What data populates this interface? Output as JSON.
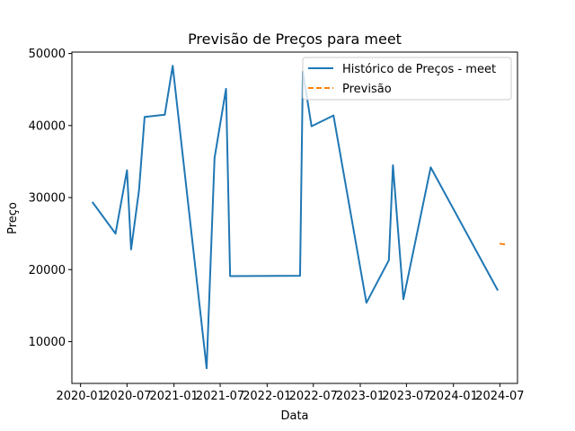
{
  "chart_data": {
    "type": "line",
    "title": "Previsão de Preços para meet",
    "xlabel": "Data",
    "ylabel": "Preço",
    "xlim": [
      "2019-11-28",
      "2024-09-08"
    ],
    "ylim": [
      4200,
      50200
    ],
    "y_ticks": [
      10000,
      20000,
      30000,
      40000,
      50000
    ],
    "x_ticks": [
      {
        "date": "2020-01-01",
        "label": "2020-01"
      },
      {
        "date": "2020-07-01",
        "label": "2020-07"
      },
      {
        "date": "2021-01-01",
        "label": "2021-01"
      },
      {
        "date": "2021-07-01",
        "label": "2021-07"
      },
      {
        "date": "2022-01-01",
        "label": "2022-01"
      },
      {
        "date": "2022-07-01",
        "label": "2022-07"
      },
      {
        "date": "2023-01-01",
        "label": "2023-01"
      },
      {
        "date": "2023-07-01",
        "label": "2023-07"
      },
      {
        "date": "2024-01-01",
        "label": "2024-01"
      },
      {
        "date": "2024-07-01",
        "label": "2024-07"
      }
    ],
    "grid": false,
    "legend_position": "top-right",
    "series": [
      {
        "name": "Histórico de Preços - meet",
        "color": "#1f77b4",
        "style": "solid",
        "points": [
          {
            "x": "2020-02-16",
            "y": 29400
          },
          {
            "x": "2020-05-17",
            "y": 25000
          },
          {
            "x": "2020-07-01",
            "y": 33800
          },
          {
            "x": "2020-07-17",
            "y": 22800
          },
          {
            "x": "2020-08-17",
            "y": 31000
          },
          {
            "x": "2020-09-08",
            "y": 41200
          },
          {
            "x": "2020-11-26",
            "y": 41500
          },
          {
            "x": "2020-12-27",
            "y": 48300
          },
          {
            "x": "2021-05-09",
            "y": 6300
          },
          {
            "x": "2021-06-09",
            "y": 35500
          },
          {
            "x": "2021-07-24",
            "y": 45100
          },
          {
            "x": "2021-08-09",
            "y": 19100
          },
          {
            "x": "2022-05-10",
            "y": 19150
          },
          {
            "x": "2022-05-21",
            "y": 47500
          },
          {
            "x": "2022-06-24",
            "y": 39900
          },
          {
            "x": "2022-09-18",
            "y": 41400
          },
          {
            "x": "2023-01-25",
            "y": 15400
          },
          {
            "x": "2023-04-23",
            "y": 21300
          },
          {
            "x": "2023-05-09",
            "y": 34500
          },
          {
            "x": "2023-06-19",
            "y": 15900
          },
          {
            "x": "2023-10-04",
            "y": 34200
          },
          {
            "x": "2024-06-23",
            "y": 17100
          }
        ]
      },
      {
        "name": "Previsão",
        "color": "#ff7f0e",
        "style": "dashed",
        "points": [
          {
            "x": "2024-06-30",
            "y": 23600
          },
          {
            "x": "2024-07-31",
            "y": 23450
          }
        ]
      }
    ]
  }
}
